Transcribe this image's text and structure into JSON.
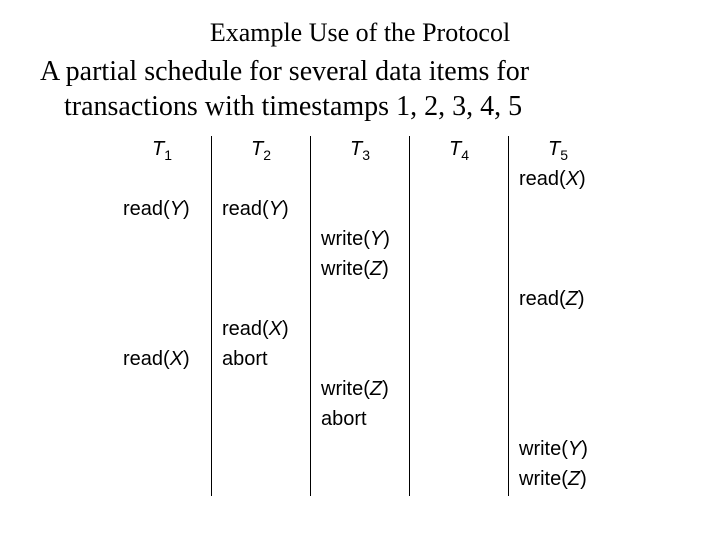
{
  "title": "Example Use of the Protocol",
  "subtitle_line1": "A partial schedule for several data items for",
  "subtitle_line2": "transactions with timestamps 1, 2, 3, 4, 5",
  "schedule": {
    "columns": [
      {
        "var": "T",
        "sub": "1"
      },
      {
        "var": "T",
        "sub": "2"
      },
      {
        "var": "T",
        "sub": "3"
      },
      {
        "var": "T",
        "sub": "4"
      },
      {
        "var": "T",
        "sub": "5"
      }
    ],
    "rows": [
      [
        "",
        "",
        "",
        "",
        {
          "op": "read",
          "arg": "X"
        }
      ],
      [
        {
          "op": "read",
          "arg": "Y"
        },
        {
          "op": "read",
          "arg": "Y"
        },
        "",
        "",
        ""
      ],
      [
        "",
        "",
        {
          "op": "write",
          "arg": "Y"
        },
        "",
        ""
      ],
      [
        "",
        "",
        {
          "op": "write",
          "arg": "Z"
        },
        "",
        ""
      ],
      [
        "",
        "",
        "",
        "",
        {
          "op": "read",
          "arg": "Z"
        }
      ],
      [
        "",
        {
          "op": "read",
          "arg": "X"
        },
        "",
        "",
        ""
      ],
      [
        {
          "op": "read",
          "arg": "X"
        },
        {
          "op": "abort"
        },
        "",
        "",
        ""
      ],
      [
        "",
        "",
        {
          "op": "write",
          "arg": "Z"
        },
        "",
        ""
      ],
      [
        "",
        "",
        {
          "op": "abort"
        },
        "",
        ""
      ],
      [
        "",
        "",
        "",
        "",
        {
          "op": "write",
          "arg": "Y"
        }
      ],
      [
        "",
        "",
        "",
        "",
        {
          "op": "write",
          "arg": "Z"
        }
      ]
    ]
  },
  "colors": {
    "background": "#ffffff",
    "text": "#000000",
    "rule": "#000000"
  }
}
